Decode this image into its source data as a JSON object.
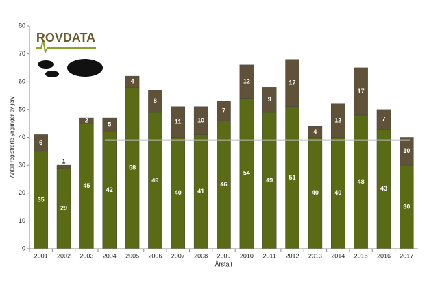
{
  "logo": "ROVDATA",
  "chart_data": {
    "type": "stacked-bar",
    "y_label": "Antall registrerte ynglinger av jerv",
    "x_label": "Årstall",
    "categories": [
      "2001",
      "2002",
      "2003",
      "2004",
      "2005",
      "2006",
      "2007",
      "2008",
      "2009",
      "2010",
      "2011",
      "2012",
      "2013",
      "2014",
      "2015",
      "2016",
      "2017"
    ],
    "series": [
      {
        "color": "#5b6a14",
        "values": [
          35,
          29,
          45,
          42,
          58,
          49,
          40,
          41,
          46,
          54,
          49,
          51,
          40,
          40,
          48,
          43,
          30
        ]
      },
      {
        "color": "#5f5238",
        "values": [
          6,
          1,
          2,
          5,
          4,
          8,
          11,
          10,
          7,
          12,
          9,
          17,
          4,
          12,
          17,
          7,
          10
        ]
      }
    ],
    "reference_line": 39,
    "ylim": [
      0,
      80
    ],
    "yticks": [
      0,
      10,
      20,
      30,
      40,
      50,
      60,
      70,
      80
    ]
  }
}
